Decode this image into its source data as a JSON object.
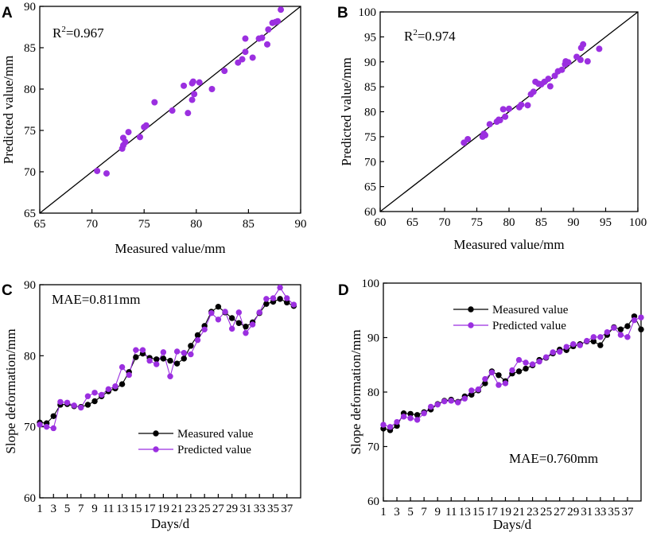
{
  "colors": {
    "measured": "#000000",
    "predicted": "#9b2fe0",
    "axis": "#000000"
  },
  "chart_data": [
    {
      "id": "A",
      "letter": "A",
      "type": "scatter",
      "annotation": {
        "base": "R",
        "sup": "2",
        "rest": "=0.967"
      },
      "xlabel": "Measured value/mm",
      "ylabel": "Predicted value/mm",
      "xlim": [
        65,
        90
      ],
      "ylim": [
        65,
        90
      ],
      "xticks": [
        "65",
        "70",
        "75",
        "80",
        "85",
        "90"
      ],
      "yticks": [
        "65",
        "70",
        "75",
        "80",
        "85",
        "90"
      ],
      "identity_line": true,
      "points": [
        [
          70.5,
          70.1
        ],
        [
          71.4,
          69.8
        ],
        [
          72.9,
          72.8
        ],
        [
          73.0,
          73.2
        ],
        [
          73.2,
          73.6
        ],
        [
          73.0,
          74.1
        ],
        [
          73.5,
          74.8
        ],
        [
          74.6,
          74.2
        ],
        [
          75.0,
          75.4
        ],
        [
          75.2,
          75.6
        ],
        [
          76.0,
          78.4
        ],
        [
          77.7,
          77.4
        ],
        [
          78.8,
          80.4
        ],
        [
          79.2,
          77.1
        ],
        [
          79.6,
          78.7
        ],
        [
          79.6,
          80.7
        ],
        [
          79.7,
          80.9
        ],
        [
          79.8,
          79.4
        ],
        [
          80.3,
          80.8
        ],
        [
          81.5,
          80.0
        ],
        [
          82.7,
          82.2
        ],
        [
          84.0,
          83.2
        ],
        [
          84.4,
          83.6
        ],
        [
          84.7,
          84.5
        ],
        [
          84.7,
          86.1
        ],
        [
          85.4,
          83.8
        ],
        [
          86.0,
          86.1
        ],
        [
          86.3,
          86.2
        ],
        [
          86.8,
          85.4
        ],
        [
          86.9,
          87.2
        ],
        [
          87.3,
          88.0
        ],
        [
          87.6,
          88.1
        ],
        [
          87.8,
          88.2
        ],
        [
          88.1,
          89.6
        ]
      ]
    },
    {
      "id": "B",
      "letter": "B",
      "type": "scatter",
      "annotation": {
        "base": "R",
        "sup": "2",
        "rest": "=0.974"
      },
      "xlabel": "Measured value/mm",
      "ylabel": "Predicted value/mm",
      "xlim": [
        60,
        100
      ],
      "ylim": [
        60,
        100
      ],
      "xticks": [
        "60",
        "65",
        "70",
        "75",
        "80",
        "85",
        "90",
        "95",
        "100"
      ],
      "yticks": [
        "60",
        "65",
        "70",
        "75",
        "80",
        "85",
        "90",
        "95",
        "100"
      ],
      "identity_line": true,
      "points": [
        [
          73.0,
          73.8
        ],
        [
          73.6,
          74.5
        ],
        [
          75.9,
          75.0
        ],
        [
          76.1,
          75.6
        ],
        [
          76.3,
          75.3
        ],
        [
          77.0,
          77.5
        ],
        [
          78.1,
          78.0
        ],
        [
          78.4,
          78.4
        ],
        [
          78.6,
          78.3
        ],
        [
          79.1,
          80.5
        ],
        [
          79.4,
          79.0
        ],
        [
          80.0,
          80.6
        ],
        [
          81.6,
          80.9
        ],
        [
          81.9,
          81.4
        ],
        [
          82.9,
          81.3
        ],
        [
          83.4,
          83.5
        ],
        [
          83.8,
          84.0
        ],
        [
          84.1,
          86.0
        ],
        [
          84.6,
          85.6
        ],
        [
          85.0,
          85.5
        ],
        [
          85.5,
          86.0
        ],
        [
          86.1,
          86.6
        ],
        [
          86.4,
          85.1
        ],
        [
          87.1,
          87.2
        ],
        [
          87.6,
          88.1
        ],
        [
          88.2,
          88.4
        ],
        [
          88.7,
          89.5
        ],
        [
          88.8,
          90.1
        ],
        [
          89.2,
          89.9
        ],
        [
          90.5,
          91.0
        ],
        [
          91.1,
          90.4
        ],
        [
          91.2,
          92.8
        ],
        [
          91.5,
          93.5
        ],
        [
          92.2,
          90.1
        ],
        [
          94.0,
          92.6
        ]
      ]
    },
    {
      "id": "C",
      "letter": "C",
      "type": "line",
      "annotation": "MAE=0.811mm",
      "xlabel": "Days/d",
      "ylabel": "Slope deformation/mm",
      "xlim": [
        1,
        39
      ],
      "ylim": [
        60,
        90
      ],
      "xticks": [
        "1",
        "3",
        "5",
        "7",
        "9",
        "11",
        "13",
        "15",
        "17",
        "19",
        "21",
        "23",
        "25",
        "27",
        "29",
        "31",
        "33",
        "35",
        "37"
      ],
      "yticks": [
        "60",
        "70",
        "80",
        "90"
      ],
      "legend": {
        "measured": "Measured value",
        "predicted": "Predicted value"
      },
      "series": [
        {
          "name": "Measured value",
          "values": [
            70.6,
            70.5,
            71.5,
            73.1,
            73.2,
            72.9,
            72.8,
            73.1,
            73.6,
            74.3,
            75.0,
            75.4,
            76.0,
            77.7,
            79.8,
            80.3,
            79.7,
            79.5,
            79.6,
            79.3,
            78.9,
            79.6,
            81.4,
            82.9,
            84.2,
            86.2,
            86.9,
            86.1,
            85.3,
            84.6,
            84.1,
            84.7,
            86.0,
            87.3,
            87.6,
            88.0,
            87.5,
            87.0
          ]
        },
        {
          "name": "Predicted value",
          "values": [
            70.3,
            70.0,
            69.8,
            73.5,
            73.4,
            73.0,
            72.7,
            74.3,
            74.8,
            74.5,
            75.3,
            75.7,
            78.4,
            77.3,
            80.8,
            80.8,
            79.3,
            78.8,
            80.5,
            77.1,
            80.6,
            80.4,
            80.2,
            82.2,
            83.7,
            86.0,
            85.1,
            86.2,
            83.8,
            86.1,
            83.2,
            84.4,
            86.1,
            88.0,
            88.1,
            89.6,
            88.1,
            87.2
          ]
        }
      ]
    },
    {
      "id": "D",
      "letter": "D",
      "type": "line",
      "annotation": "MAE=0.760mm",
      "xlabel": "Days/d",
      "ylabel": "Slope deformation/mm",
      "xlim": [
        1,
        39
      ],
      "ylim": [
        60,
        100
      ],
      "xticks": [
        "1",
        "3",
        "5",
        "7",
        "9",
        "11",
        "13",
        "15",
        "17",
        "19",
        "21",
        "23",
        "25",
        "27",
        "29",
        "31",
        "33",
        "35",
        "37"
      ],
      "yticks": [
        "60",
        "70",
        "80",
        "90",
        "100"
      ],
      "legend": {
        "measured": "Measured value",
        "predicted": "Predicted value"
      },
      "series": [
        {
          "name": "Measured value",
          "values": [
            73.3,
            73.0,
            73.8,
            76.1,
            76.0,
            75.8,
            76.3,
            76.8,
            77.8,
            78.4,
            78.6,
            78.2,
            79.2,
            79.5,
            80.3,
            81.6,
            83.8,
            83.1,
            82.0,
            83.4,
            83.8,
            84.3,
            84.9,
            85.9,
            86.3,
            87.1,
            87.8,
            87.7,
            88.4,
            88.8,
            89.3,
            89.3,
            88.6,
            90.5,
            91.9,
            91.5,
            92.1,
            93.9,
            91.5
          ]
        },
        {
          "name": "Predicted value",
          "values": [
            74.0,
            73.6,
            74.5,
            75.5,
            75.2,
            74.9,
            76.1,
            77.3,
            77.7,
            78.3,
            78.4,
            78.1,
            78.8,
            80.3,
            80.5,
            82.4,
            83.6,
            81.3,
            81.6,
            84.0,
            85.9,
            85.4,
            85.1,
            85.6,
            86.4,
            87.3,
            87.4,
            88.3,
            88.8,
            88.6,
            89.4,
            90.1,
            90.1,
            91.0,
            91.8,
            90.5,
            90.1,
            93.2,
            93.7
          ]
        }
      ]
    }
  ]
}
